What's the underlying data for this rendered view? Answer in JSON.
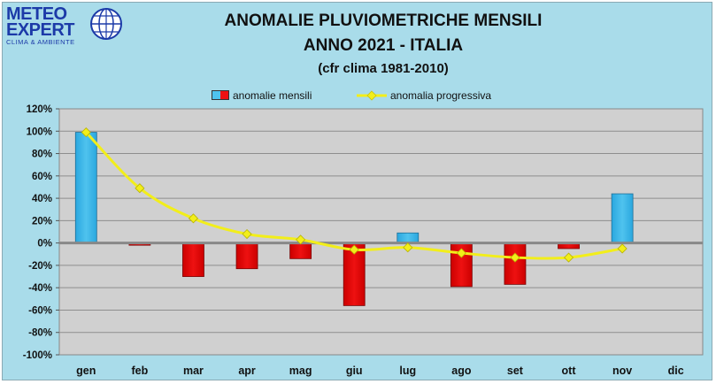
{
  "logo": {
    "line1": "METEO",
    "line2": "EXPERT",
    "line3": "CLIMA & AMBIENTE"
  },
  "colors": {
    "background": "#a9dcea",
    "plot_area": "#d0d0d0",
    "positive_bar": "#4fc3ee",
    "negative_bar": "#ee1111",
    "progressive_line": "#f2ee1a",
    "zero_line": "#888888"
  },
  "chart_data": {
    "type": "bar",
    "title": "ANOMALIE PLUVIOMETRICHE MENSILI",
    "subtitle": "ANNO 2021 - ITALIA",
    "note": "(cfr clima 1981-2010)",
    "categories": [
      "gen",
      "feb",
      "mar",
      "apr",
      "mag",
      "giu",
      "lug",
      "ago",
      "set",
      "ott",
      "nov",
      "dic"
    ],
    "series": [
      {
        "name": "anomalie mensili",
        "kind": "bar",
        "values": [
          99,
          -2,
          -30,
          -23,
          -14,
          -56,
          9,
          -39,
          -37,
          -5,
          44,
          null
        ]
      },
      {
        "name": "anomalia progressiva",
        "kind": "line",
        "values": [
          99,
          49,
          22,
          8,
          3,
          -6,
          -4,
          -9,
          -13,
          -13,
          -5,
          null
        ]
      }
    ],
    "ylim": [
      -100,
      120
    ],
    "yticks": [
      "-100%",
      "-80%",
      "-60%",
      "-40%",
      "-20%",
      "0%",
      "20%",
      "40%",
      "60%",
      "80%",
      "100%",
      "120%"
    ],
    "ytick_values": [
      -100,
      -80,
      -60,
      -40,
      -20,
      0,
      20,
      40,
      60,
      80,
      100,
      120
    ],
    "grid": true,
    "legend_position": "top"
  }
}
